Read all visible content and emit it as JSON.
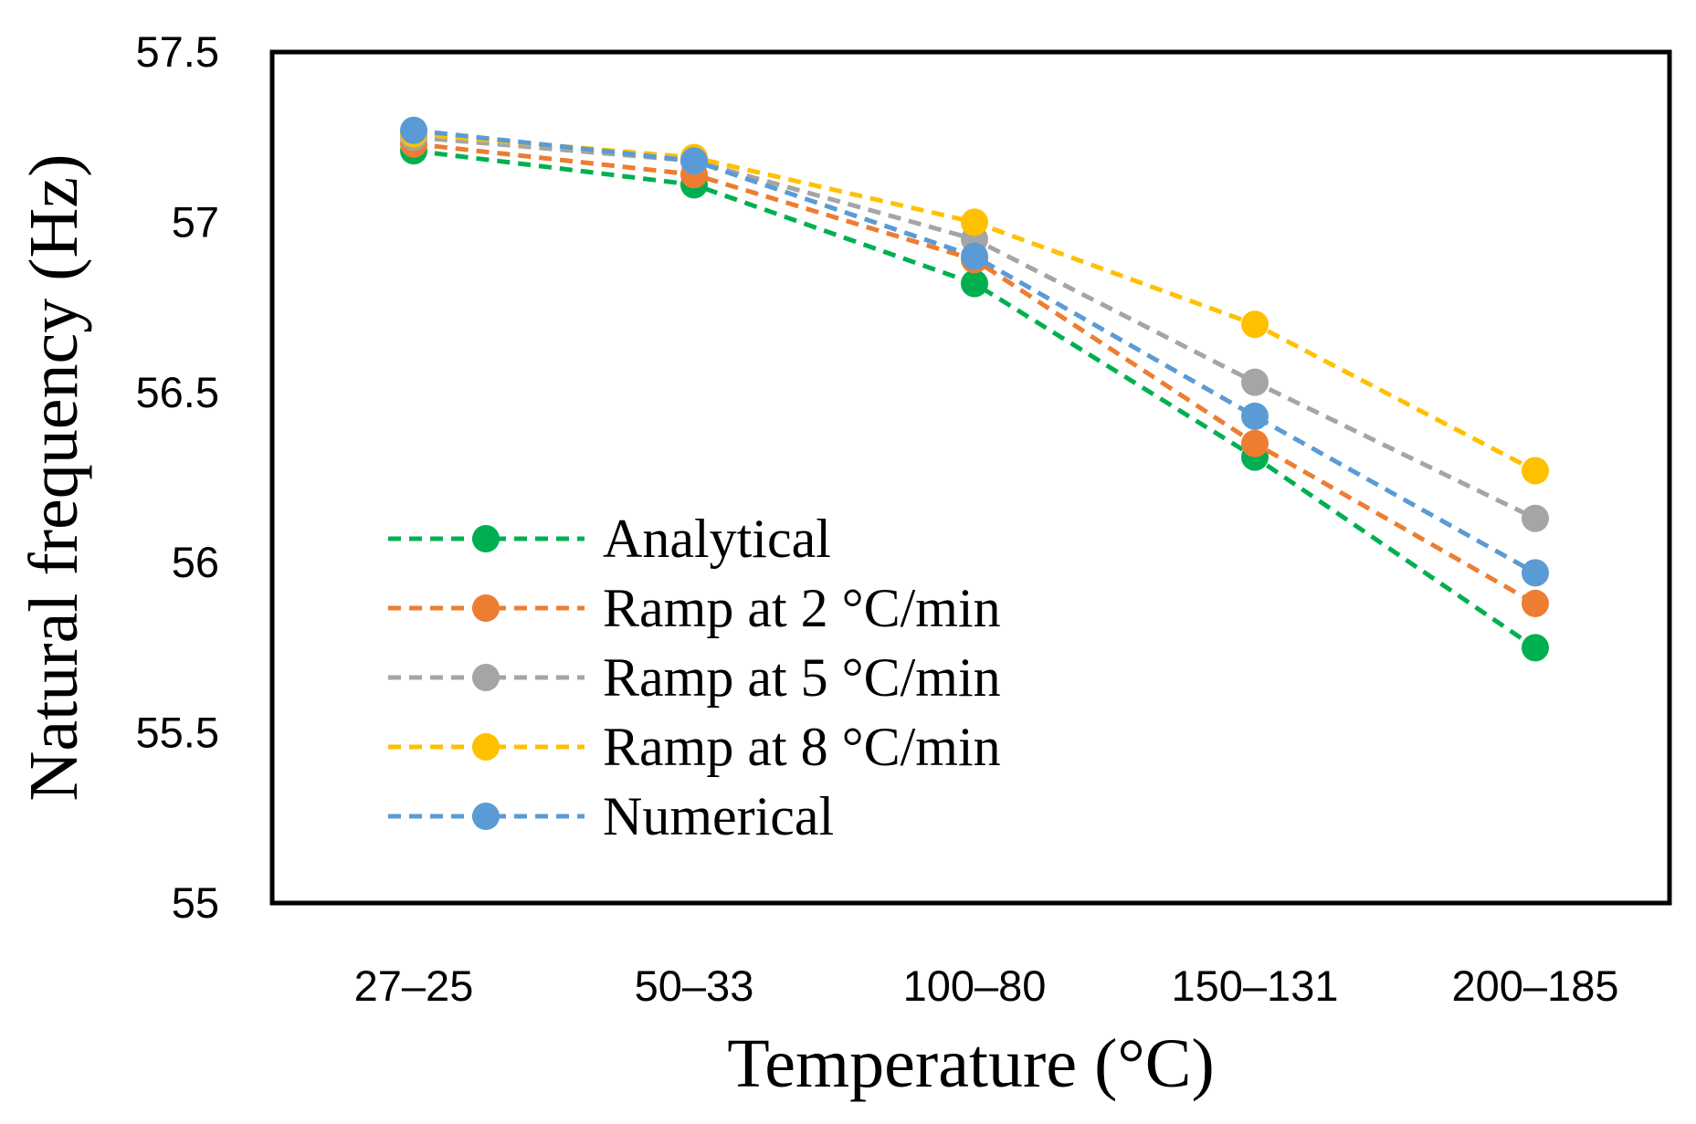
{
  "chart_data": {
    "type": "line",
    "title": "",
    "xlabel": "Temperature (°C)",
    "ylabel": "Natural frequency (Hz)",
    "categories": [
      "27–25",
      "50–33",
      "100–80",
      "150–131",
      "200–185"
    ],
    "ylim": [
      55,
      57.5
    ],
    "yticks": [
      55,
      55.5,
      56,
      56.5,
      57,
      57.5
    ],
    "ytick_labels": [
      "55",
      "55.5",
      "56",
      "56.5",
      "57",
      "57.5"
    ],
    "grid": false,
    "legend_position": "lower-left",
    "series": [
      {
        "name": "Analytical",
        "color": "#00B050",
        "line_style": "dashed",
        "marker": "circle",
        "values": [
          57.21,
          57.11,
          56.82,
          56.31,
          55.75
        ]
      },
      {
        "name": "Ramp at 2 °C/min",
        "color": "#ED7D31",
        "line_style": "dashed",
        "marker": "circle",
        "values": [
          57.23,
          57.14,
          56.89,
          56.35,
          55.88
        ]
      },
      {
        "name": "Ramp at 5 °C/min",
        "color": "#A5A5A5",
        "line_style": "dashed",
        "marker": "circle",
        "values": [
          57.25,
          57.18,
          56.95,
          56.53,
          56.13
        ]
      },
      {
        "name": "Ramp at 8 °C/min",
        "color": "#FFC000",
        "line_style": "dashed",
        "marker": "circle",
        "values": [
          57.26,
          57.19,
          57.0,
          56.7,
          56.27
        ]
      },
      {
        "name": "Numerical",
        "color": "#5B9BD5",
        "line_style": "dashed",
        "marker": "circle",
        "values": [
          57.27,
          57.18,
          56.9,
          56.43,
          55.97
        ]
      }
    ]
  }
}
